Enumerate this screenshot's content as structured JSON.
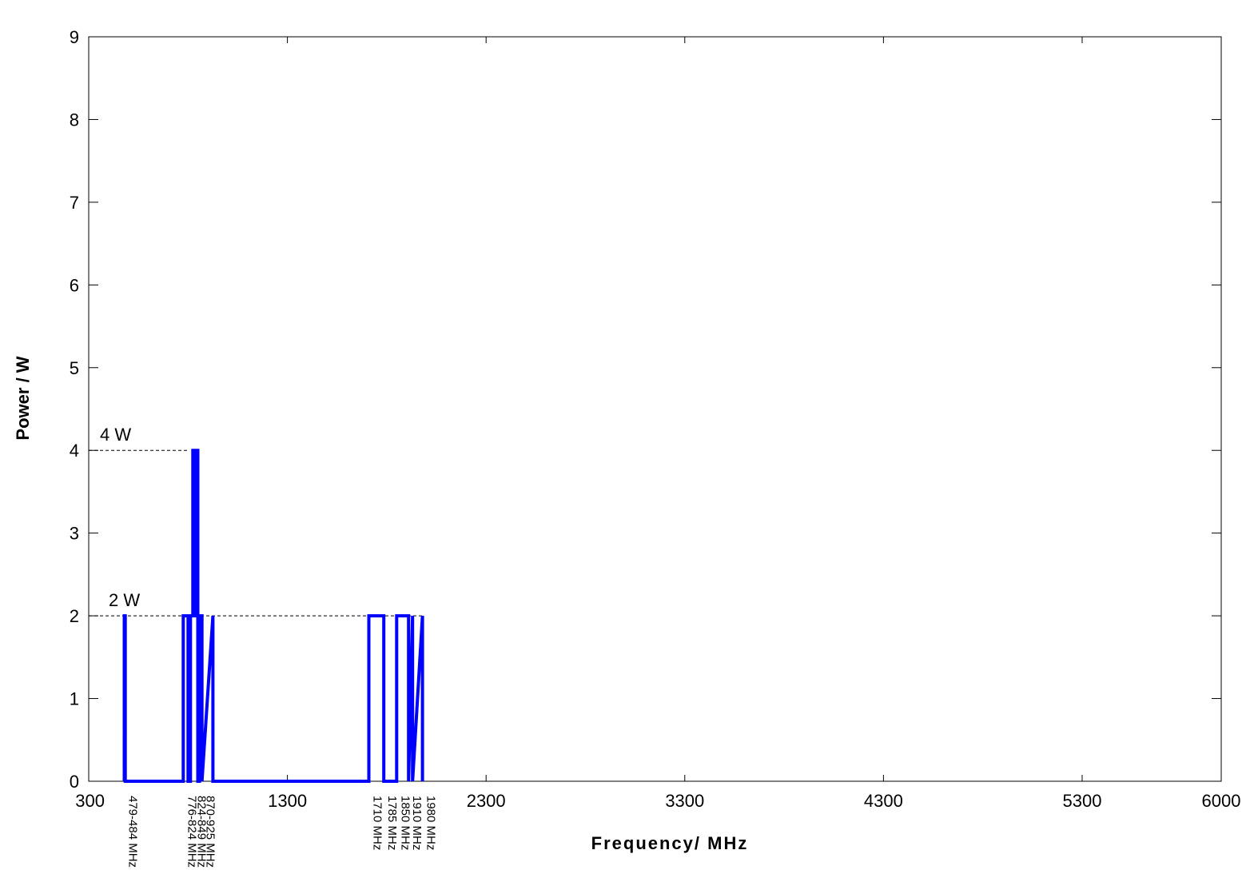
{
  "chart_data": {
    "type": "line",
    "title": "",
    "xlabel": "Frequency/ MHz",
    "ylabel": "Power / W",
    "xlim": [
      300,
      6000
    ],
    "ylim": [
      0,
      9
    ],
    "grid": false,
    "legend": "none",
    "x_ticks": [
      "300",
      "1300",
      "2300",
      "3300",
      "4300",
      "5300",
      "6000"
    ],
    "y_ticks": [
      "0",
      "1",
      "2",
      "3",
      "4",
      "5",
      "6",
      "7",
      "8",
      "9"
    ],
    "line_color": "#0000ff",
    "reference_lines": [
      {
        "y": 4,
        "label": "4 W",
        "x_end": 800
      },
      {
        "y": 2,
        "label": "2 W",
        "x_end": 1980
      }
    ],
    "series": [
      {
        "x": [
          479,
          479,
          484,
          484,
          776,
          776,
          800,
          800,
          812,
          812,
          824,
          824,
          828,
          828,
          840,
          840,
          849,
          849,
          857,
          857,
          870,
          870,
          925,
          925,
          1710,
          1710,
          1785,
          1785,
          1850,
          1850,
          1910,
          1910,
          1930,
          1930,
          1980,
          1980
        ],
        "y": [
          0,
          2,
          2,
          0,
          0,
          2,
          2,
          0,
          0,
          2,
          2,
          4,
          4,
          2,
          2,
          4,
          4,
          0,
          0,
          2,
          2,
          0,
          2,
          0,
          0,
          2,
          2,
          0,
          0,
          2,
          2,
          0,
          2,
          0,
          2,
          0
        ]
      }
    ],
    "band_labels": [
      "479-484 MHz",
      "776-824 MHz",
      "824-849 MHz",
      "870-925 MHz",
      "1710 MHz",
      "1785 MHz",
      "1850 MHz",
      "1910 MHz",
      "1980 MHz"
    ]
  }
}
